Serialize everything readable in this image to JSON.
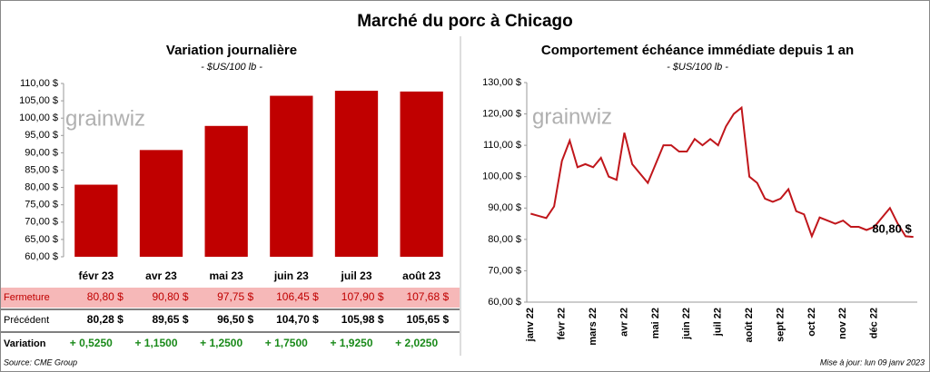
{
  "title": "Marché du porc à Chicago",
  "watermark": "grainwiz",
  "chart_data": [
    {
      "type": "bar",
      "title": "Variation journalière",
      "subtitle": "- $US/100 lb -",
      "categories": [
        "févr 23",
        "avr 23",
        "mai 23",
        "juin 23",
        "juil 23",
        "août 23"
      ],
      "values": [
        80.8,
        90.8,
        97.75,
        106.45,
        107.9,
        107.68
      ],
      "value_labels": [
        "80,80 $",
        "90,80 $",
        "97,75 $",
        "106,45 $",
        "107,90 $",
        "107,68 $"
      ],
      "color": "#c00000",
      "ylim": [
        60,
        110
      ],
      "yticks": [
        {
          "value": 60,
          "label": "60,00 $"
        },
        {
          "value": 65,
          "label": "65,00 $"
        },
        {
          "value": 70,
          "label": "70,00 $"
        },
        {
          "value": 75,
          "label": "75,00 $"
        },
        {
          "value": 80,
          "label": "80,00 $"
        },
        {
          "value": 85,
          "label": "85,00 $"
        },
        {
          "value": 90,
          "label": "90,00 $"
        },
        {
          "value": 95,
          "label": "95,00 $"
        },
        {
          "value": 100,
          "label": "100,00 $"
        },
        {
          "value": 105,
          "label": "105,00 $"
        },
        {
          "value": 110,
          "label": "110,00 $"
        }
      ]
    },
    {
      "type": "line",
      "title": "Comportement  échéance immédiate depuis 1 an",
      "subtitle": "- $US/100 lb -",
      "categories": [
        "janv 22",
        null,
        null,
        null,
        "févr 22",
        null,
        null,
        null,
        "mars 22",
        null,
        null,
        null,
        "avr 22",
        null,
        null,
        null,
        "mai 22",
        null,
        null,
        null,
        "juin 22",
        null,
        null,
        null,
        "juil 22",
        null,
        null,
        null,
        "août 22",
        null,
        null,
        null,
        "sept 22",
        null,
        null,
        null,
        "oct 22",
        null,
        null,
        null,
        "nov 22",
        null,
        null,
        null,
        "déc 22",
        null,
        null,
        null,
        null,
        null
      ],
      "series": [
        {
          "color": "#c0161b",
          "values": [
            88.2,
            87.5,
            86.8,
            90.5,
            105,
            111.5,
            103,
            104,
            103,
            106,
            100,
            99,
            114,
            104,
            101,
            98,
            104,
            110,
            110,
            108,
            108,
            112,
            110,
            112,
            110,
            116,
            120,
            122,
            100,
            98,
            93,
            92,
            93,
            96,
            89,
            88,
            81,
            87,
            86,
            85,
            86,
            84,
            84,
            83,
            84,
            87,
            90,
            85,
            81,
            80.8
          ],
          "value_labels": [
            null,
            null,
            null,
            null,
            null,
            null,
            null,
            null,
            null,
            null,
            null,
            null,
            null,
            null,
            null,
            null,
            null,
            null,
            null,
            null,
            null,
            null,
            null,
            null,
            null,
            null,
            null,
            null,
            null,
            null,
            null,
            null,
            null,
            null,
            null,
            null,
            null,
            null,
            null,
            null,
            null,
            null,
            null,
            null,
            null,
            null,
            null,
            null,
            null,
            "80,80 $"
          ]
        }
      ],
      "ylim": [
        60,
        130
      ],
      "yticks": [
        {
          "value": 60,
          "label": "60,00 $"
        },
        {
          "value": 70,
          "label": "70,00 $"
        },
        {
          "value": 80,
          "label": "80,00 $"
        },
        {
          "value": 90,
          "label": "90,00 $"
        },
        {
          "value": 100,
          "label": "100,00 $"
        },
        {
          "value": 110,
          "label": "110,00 $"
        },
        {
          "value": 120,
          "label": "120,00 $"
        },
        {
          "value": 130,
          "label": "130,00 $"
        }
      ]
    }
  ],
  "table": {
    "row_labels": [
      "Fermeture",
      "Précédent",
      "Variation"
    ],
    "previous": [
      "80,28 $",
      "89,65 $",
      "96,50 $",
      "104,70 $",
      "105,98 $",
      "105,65 $"
    ],
    "variation": [
      "+ 0,5250",
      "+ 1,1500",
      "+ 1,2500",
      "+ 1,7500",
      "+ 1,9250",
      "+ 2,0250"
    ]
  },
  "footer": {
    "source": "Source: CME Group",
    "updated": "Mise à jour: lun 09 janv 2023"
  }
}
